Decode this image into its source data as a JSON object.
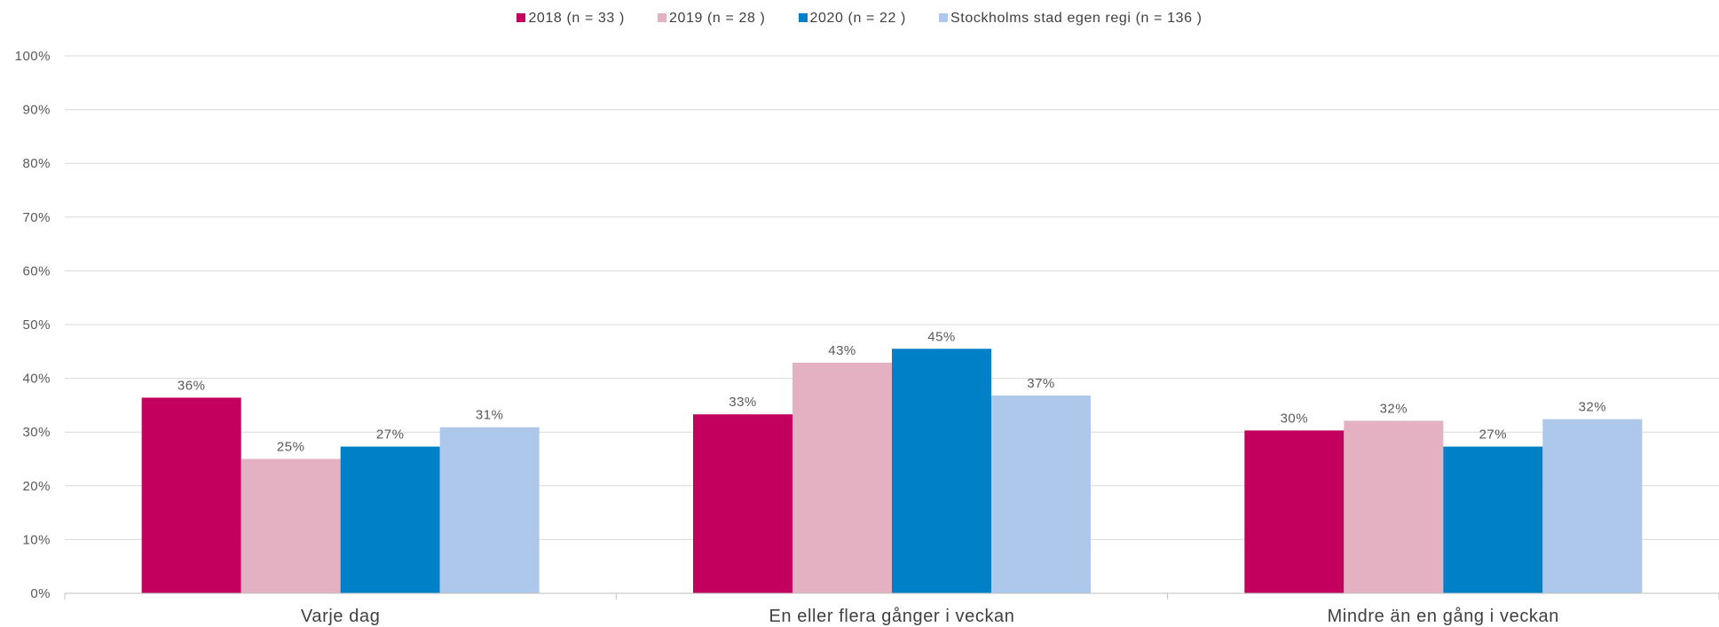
{
  "chart_data": {
    "type": "bar",
    "title": "",
    "xlabel": "",
    "ylabel": "",
    "ylim": [
      0,
      100
    ],
    "y_ticks": [
      "0%",
      "10%",
      "20%",
      "30%",
      "40%",
      "50%",
      "60%",
      "70%",
      "80%",
      "90%",
      "100%"
    ],
    "grid": true,
    "legend_position": "top",
    "categories": [
      "Varje dag",
      "En eller flera gånger i veckan",
      "Mindre än en gång i veckan"
    ],
    "series": [
      {
        "name": "2018 (n = 33 )",
        "color": "#C4005F",
        "values": [
          36.4,
          33.3,
          30.3
        ],
        "labels": [
          "36%",
          "33%",
          "30%"
        ]
      },
      {
        "name": "2019 (n = 28 )",
        "color": "#E4B1C3",
        "values": [
          25.0,
          42.9,
          32.1
        ],
        "labels": [
          "25%",
          "43%",
          "32%"
        ]
      },
      {
        "name": "2020 (n = 22 )",
        "color": "#0080C6",
        "values": [
          27.3,
          45.5,
          27.3
        ],
        "labels": [
          "27%",
          "45%",
          "27%"
        ]
      },
      {
        "name": "Stockholms stad egen regi (n = 136 )",
        "color": "#ADC8EB",
        "values": [
          30.9,
          36.8,
          32.4
        ],
        "labels": [
          "31%",
          "37%",
          "32%"
        ]
      }
    ]
  }
}
